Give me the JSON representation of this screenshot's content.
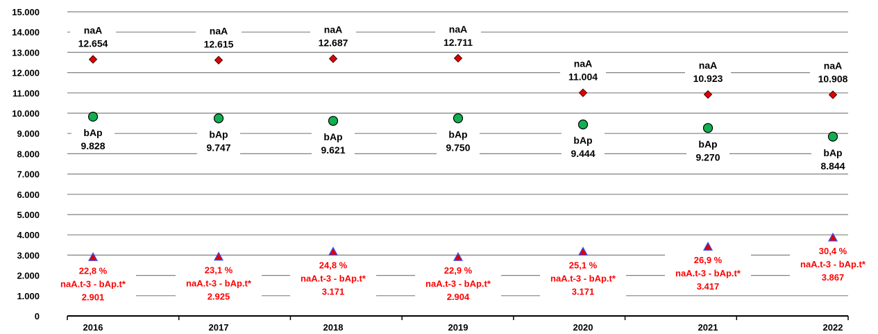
{
  "chart_data": {
    "type": "scatter",
    "categories": [
      "2016",
      "2017",
      "2018",
      "2019",
      "2020",
      "2021",
      "2022"
    ],
    "ylim": [
      0,
      15000
    ],
    "yticks": [
      "0",
      "1.000",
      "2.000",
      "3.000",
      "4.000",
      "5.000",
      "6.000",
      "7.000",
      "8.000",
      "9.000",
      "10.000",
      "11.000",
      "12.000",
      "13.000",
      "14.000",
      "15.000"
    ],
    "grid": true,
    "series": [
      {
        "name": "naA",
        "marker": "diamond",
        "color": "#e00000",
        "values": [
          12654,
          12615,
          12687,
          12711,
          11004,
          10923,
          10908
        ],
        "value_labels": [
          "12.654",
          "12.615",
          "12.687",
          "12.711",
          "11.004",
          "10.923",
          "10.908"
        ]
      },
      {
        "name": "bAp",
        "marker": "circle",
        "color": "#10b050",
        "values": [
          9828,
          9747,
          9621,
          9750,
          9444,
          9270,
          8844
        ],
        "value_labels": [
          "9.828",
          "9.747",
          "9.621",
          "9.750",
          "9.444",
          "9.270",
          "8.844"
        ]
      },
      {
        "name": "naA.t-3 - bAp.t*",
        "marker": "triangle",
        "color": "#e00000",
        "values": [
          2901,
          2925,
          3171,
          2904,
          3171,
          3417,
          3867
        ],
        "value_labels": [
          "2.901",
          "2.925",
          "3.171",
          "2.904",
          "3.171",
          "3.417",
          "3.867"
        ],
        "percent_labels": [
          "22,8 %",
          "23,1 %",
          "24,8 %",
          "22,9 %",
          "25,1 %",
          "26,9 %",
          "30,4 %"
        ]
      }
    ]
  }
}
